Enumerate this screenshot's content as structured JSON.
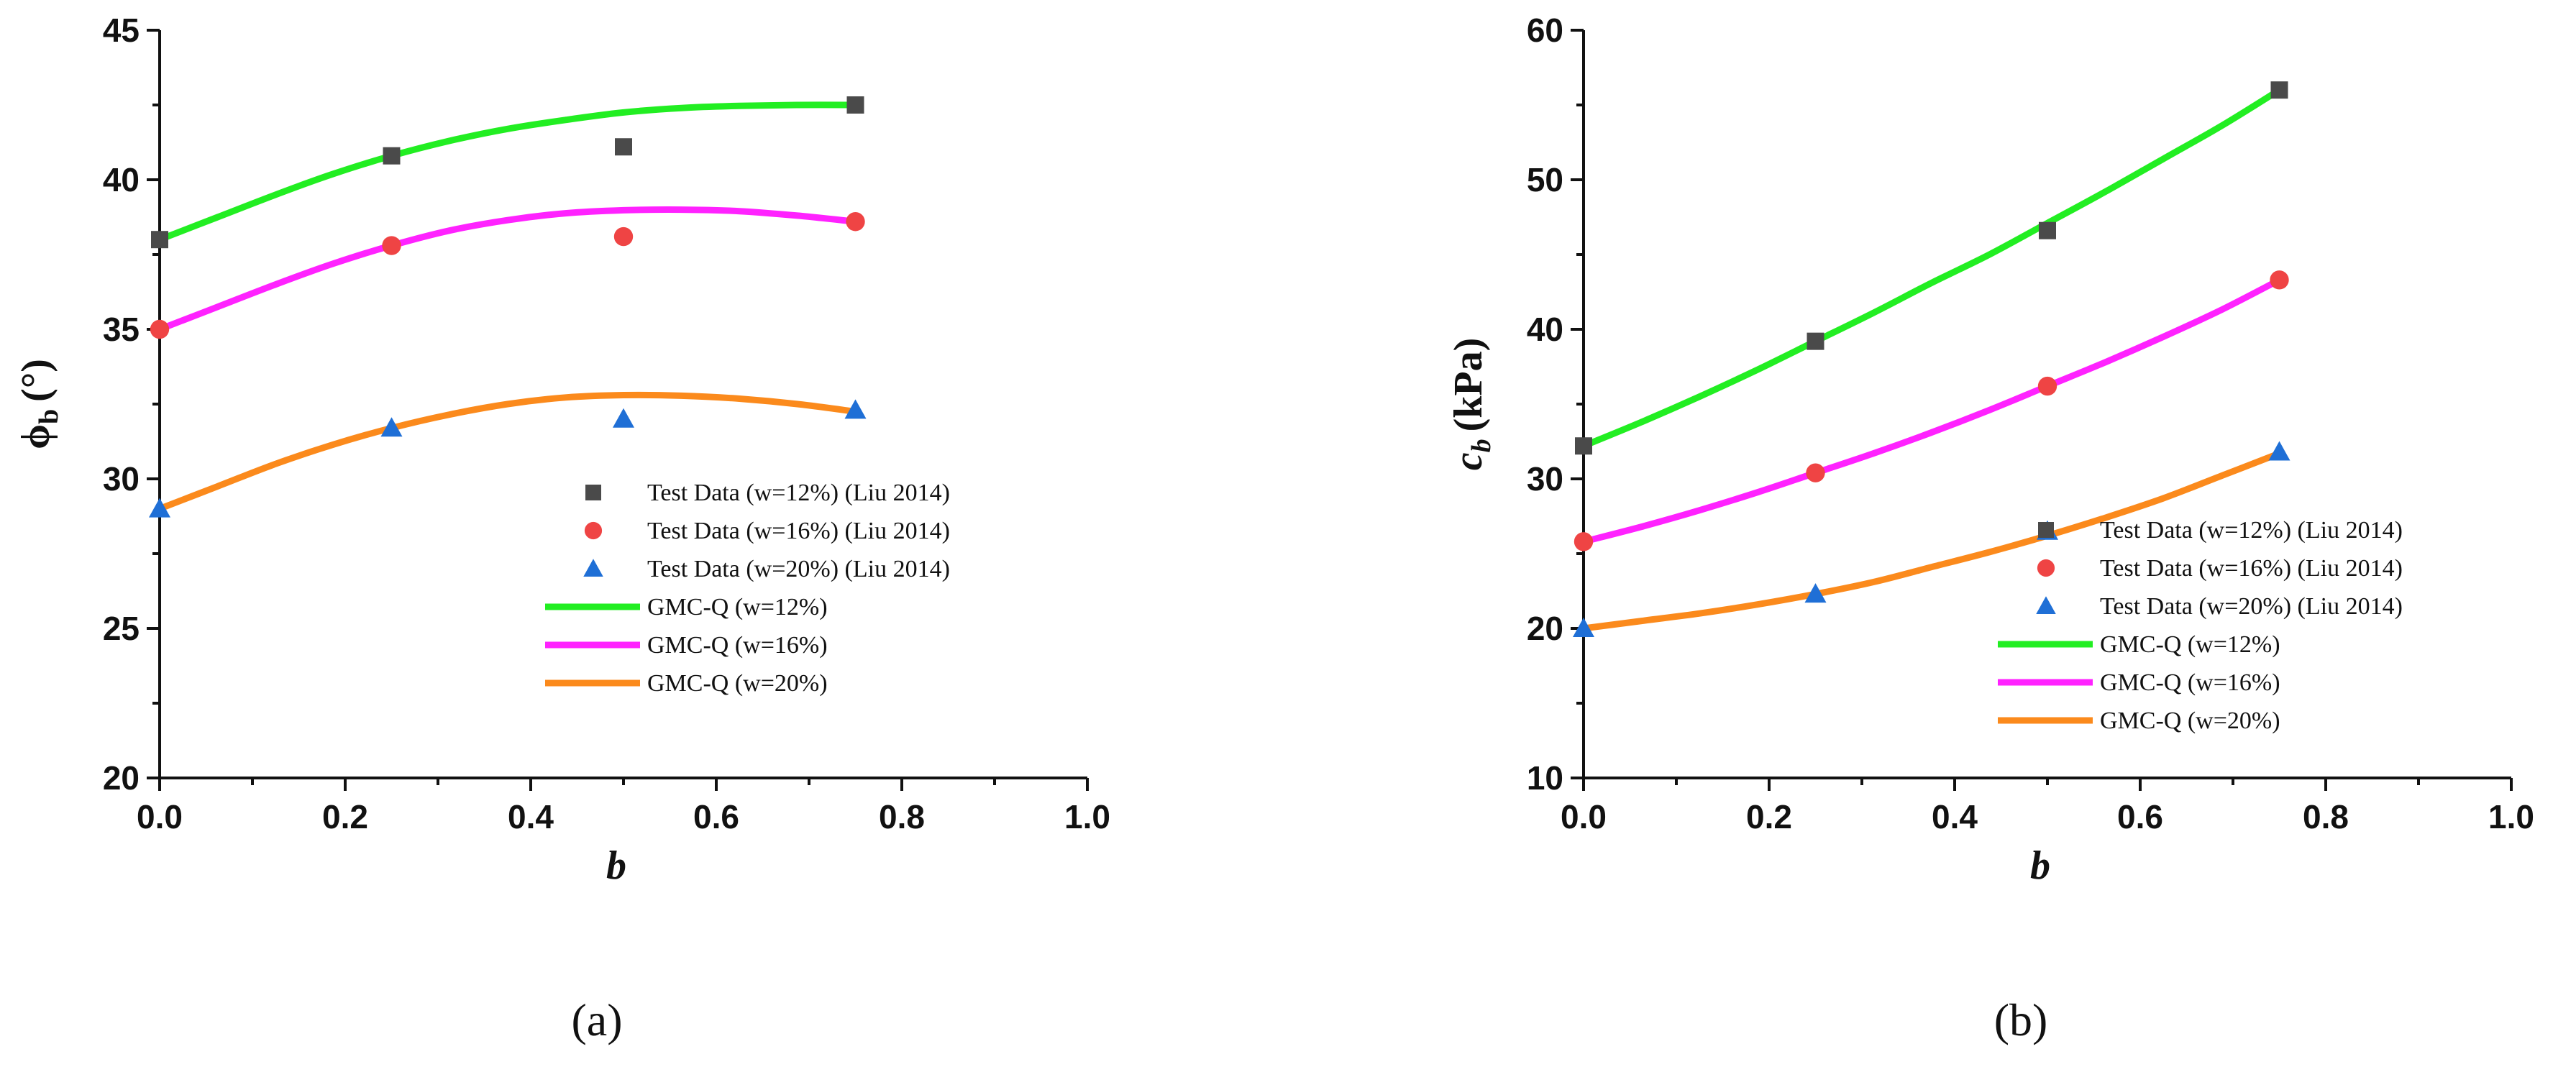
{
  "chart_data": [
    {
      "type": "line",
      "panel_label": "(a)",
      "xlabel": "b",
      "ylabel_main": "ϕ",
      "ylabel_sub": "b",
      "ylabel_unit": "(°)",
      "xlim": [
        0.0,
        1.0
      ],
      "ylim": [
        20,
        45
      ],
      "xticks": [
        "0.0",
        "0.2",
        "0.4",
        "0.6",
        "0.8",
        "1.0"
      ],
      "yticks": [
        "20",
        "25",
        "30",
        "35",
        "40",
        "45"
      ],
      "scatter_series": [
        {
          "name": "Test Data (w=12%) (Liu 2014)",
          "marker": "square",
          "color": "#4a4a4a",
          "x": [
            0.0,
            0.25,
            0.5,
            0.75
          ],
          "y": [
            38.0,
            40.8,
            41.1,
            42.5
          ]
        },
        {
          "name": "Test Data (w=16%) (Liu 2014)",
          "marker": "circle",
          "color": "#ef4444",
          "x": [
            0.0,
            0.25,
            0.5,
            0.75
          ],
          "y": [
            35.0,
            37.8,
            38.1,
            38.6
          ]
        },
        {
          "name": "Test Data (w=20%) (Liu 2014)",
          "marker": "triangle",
          "color": "#1f6fd6",
          "x": [
            0.0,
            0.25,
            0.5,
            0.75
          ],
          "y": [
            29.0,
            31.7,
            32.0,
            32.3
          ]
        }
      ],
      "line_series": [
        {
          "name": "GMC-Q (w=12%)",
          "color": "#22ee22",
          "x": [
            0.0,
            0.0625,
            0.125,
            0.1875,
            0.25,
            0.3125,
            0.375,
            0.4375,
            0.5,
            0.5625,
            0.625,
            0.6875,
            0.75
          ],
          "y": [
            38.0,
            38.75,
            39.5,
            40.2,
            40.8,
            41.3,
            41.7,
            42.0,
            42.25,
            42.4,
            42.47,
            42.5,
            42.5
          ]
        },
        {
          "name": "GMC-Q (w=16%)",
          "color": "#ff22ff",
          "x": [
            0.0,
            0.0625,
            0.125,
            0.1875,
            0.25,
            0.3125,
            0.375,
            0.4375,
            0.5,
            0.5625,
            0.625,
            0.6875,
            0.75
          ],
          "y": [
            35.0,
            35.75,
            36.5,
            37.2,
            37.8,
            38.3,
            38.65,
            38.88,
            38.98,
            39.0,
            38.95,
            38.8,
            38.6
          ]
        },
        {
          "name": "GMC-Q (w=20%)",
          "color": "#fb8a1c",
          "x": [
            0.0,
            0.0625,
            0.125,
            0.1875,
            0.25,
            0.3125,
            0.375,
            0.4375,
            0.5,
            0.5625,
            0.625,
            0.6875,
            0.75
          ],
          "y": [
            29.0,
            29.75,
            30.5,
            31.15,
            31.7,
            32.15,
            32.5,
            32.72,
            32.8,
            32.78,
            32.68,
            32.5,
            32.25
          ]
        }
      ],
      "legend_position": "center-right"
    },
    {
      "type": "line",
      "panel_label": "(b)",
      "xlabel": "b",
      "ylabel_main": "c",
      "ylabel_sub": "b",
      "ylabel_unit": "(kPa)",
      "xlim": [
        0.0,
        1.0
      ],
      "ylim": [
        10,
        60
      ],
      "xticks": [
        "0.0",
        "0.2",
        "0.4",
        "0.6",
        "0.8",
        "1.0"
      ],
      "yticks": [
        "10",
        "20",
        "30",
        "40",
        "50",
        "60"
      ],
      "scatter_series": [
        {
          "name": "Test Data (w=12%) (Liu 2014)",
          "marker": "square",
          "color": "#4a4a4a",
          "x": [
            0.0,
            0.25,
            0.5,
            0.75
          ],
          "y": [
            32.2,
            39.2,
            46.6,
            56.0
          ]
        },
        {
          "name": "Test Data (w=16%) (Liu 2014)",
          "marker": "circle",
          "color": "#ef4444",
          "x": [
            0.0,
            0.25,
            0.5,
            0.75
          ],
          "y": [
            25.8,
            30.4,
            36.2,
            43.3
          ]
        },
        {
          "name": "Test Data (w=20%) (Liu 2014)",
          "marker": "triangle",
          "color": "#1f6fd6",
          "x": [
            0.0,
            0.25,
            0.5,
            0.75
          ],
          "y": [
            20.0,
            22.3,
            26.5,
            31.8
          ]
        }
      ],
      "line_series": [
        {
          "name": "GMC-Q (w=12%)",
          "color": "#22ee22",
          "x": [
            0.0,
            0.0625,
            0.125,
            0.1875,
            0.25,
            0.3125,
            0.375,
            0.4375,
            0.5,
            0.5625,
            0.625,
            0.6875,
            0.75
          ],
          "y": [
            32.2,
            33.8,
            35.5,
            37.3,
            39.2,
            41.1,
            43.1,
            45.0,
            47.1,
            49.2,
            51.4,
            53.6,
            56.0
          ]
        },
        {
          "name": "GMC-Q (w=16%)",
          "color": "#ff22ff",
          "x": [
            0.0,
            0.0625,
            0.125,
            0.1875,
            0.25,
            0.3125,
            0.375,
            0.4375,
            0.5,
            0.5625,
            0.625,
            0.6875,
            0.75
          ],
          "y": [
            25.8,
            26.8,
            27.9,
            29.1,
            30.4,
            31.7,
            33.1,
            34.6,
            36.2,
            37.8,
            39.5,
            41.3,
            43.3
          ]
        },
        {
          "name": "GMC-Q (w=20%)",
          "color": "#fb8a1c",
          "x": [
            0.0,
            0.0625,
            0.125,
            0.1875,
            0.25,
            0.3125,
            0.375,
            0.4375,
            0.5,
            0.5625,
            0.625,
            0.6875,
            0.75
          ],
          "y": [
            20.0,
            20.5,
            21.0,
            21.6,
            22.3,
            23.1,
            24.1,
            25.1,
            26.2,
            27.4,
            28.7,
            30.2,
            31.7
          ]
        }
      ],
      "legend_position": "lower-right"
    }
  ]
}
